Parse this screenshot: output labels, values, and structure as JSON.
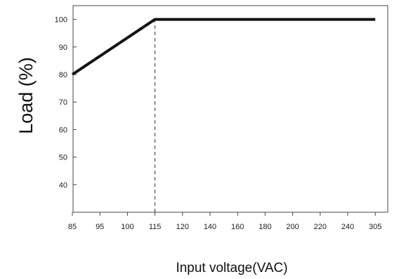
{
  "chart_data": {
    "type": "line",
    "ylabel": "Load (%)",
    "xlabel": "Input voltage(VAC)",
    "x_tick_labels": [
      "85",
      "95",
      "100",
      "115",
      "120",
      "140",
      "160",
      "180",
      "200",
      "220",
      "240",
      "305"
    ],
    "y_ticks": [
      40,
      50,
      60,
      70,
      80,
      90,
      100
    ],
    "ylim": [
      30,
      105
    ],
    "grid": false,
    "series": [
      {
        "points": [
          {
            "x": "85",
            "y": 80
          },
          {
            "x": "115",
            "y": 100
          },
          {
            "x": "305",
            "y": 100
          }
        ]
      }
    ],
    "annotations": [
      {
        "type": "dashed-vertical-line",
        "x": "115",
        "y_from": 30,
        "y_to": 100
      }
    ],
    "colors": {
      "line": "#111111",
      "axis": "#444444"
    }
  }
}
